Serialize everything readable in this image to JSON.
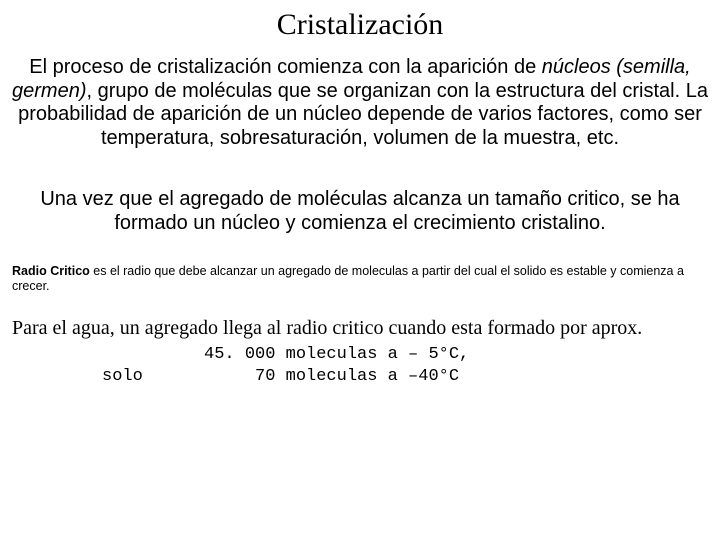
{
  "title": "Cristalización",
  "p1_a": "El proceso de cristalización comienza con la aparición de ",
  "p1_i": "núcleos (semilla, germen)",
  "p1_b": ", grupo de moléculas que se organizan con la estructura del cristal. La probabilidad de aparición de un núcleo depende de varios factores, como ser temperatura, sobresaturación, volumen de la muestra, etc.",
  "p2": "Una vez que el agregado de moléculas alcanza un tamaño critico, se ha formado un núcleo y comienza el crecimiento cristalino.",
  "note_b": "Radio Critico",
  "note_t": " es el radio que debe alcanzar un agregado de moleculas a partir del cual el solido es estable y comienza a crecer.",
  "closing": "Para el agua, un agregado llega al radio critico cuando esta formado por aprox.",
  "mono1": "          45. 000 moleculas a – 5°C,",
  "mono2": "solo           70 moleculas a –40°C"
}
